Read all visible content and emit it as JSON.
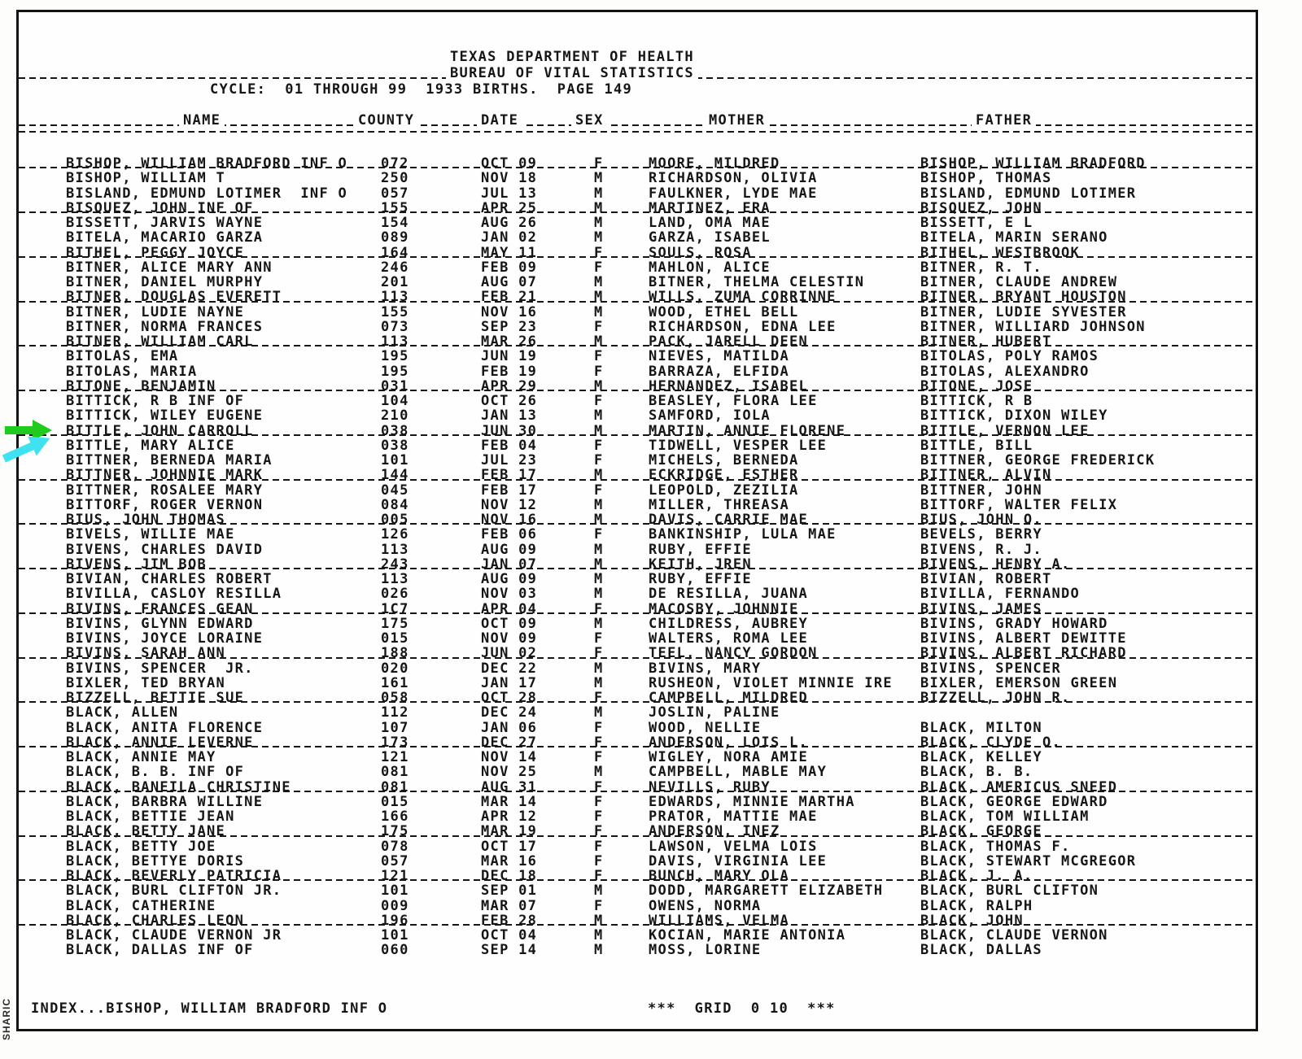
{
  "header": {
    "title_line1": "TEXAS DEPARTMENT OF HEALTH",
    "title_line2": "BUREAU OF VITAL STATISTICS",
    "cycle_line": "CYCLE:  01 THROUGH 99  1933 BIRTHS.  PAGE 149"
  },
  "columns": {
    "name": "NAME",
    "county": "COUNTY",
    "date": "DATE",
    "sex": "SEX",
    "mother": "MOTHER",
    "father": "FATHER"
  },
  "rows": [
    {
      "name": "BISHOP, WILLIAM BRADFORD INF O",
      "county": "072",
      "date": "OCT 09",
      "sex": "F",
      "mother": "MOORE, MILDRED",
      "father": "BISHOP, WILLIAM BRADFORD"
    },
    {
      "name": "BISHOP, WILLIAM T",
      "county": "250",
      "date": "NOV 18",
      "sex": "M",
      "mother": "RICHARDSON, OLIVIA",
      "father": "BISHOP, THOMAS"
    },
    {
      "name": "BISLAND, EDMUND LOTIMER  INF O",
      "county": "057",
      "date": "JUL 13",
      "sex": "M",
      "mother": "FAULKNER, LYDE MAE",
      "father": "BISLAND, EDMUND LOTIMER"
    },
    {
      "name": "BISQUEZ, JOHN INF OF",
      "county": "155",
      "date": "APR 25",
      "sex": "M",
      "mother": "MARTINEZ, ERA",
      "father": "BISQUEZ, JOHN"
    },
    {
      "name": "BISSETT, JARVIS WAYNE",
      "county": "154",
      "date": "AUG 26",
      "sex": "M",
      "mother": "LAND, OMA MAE",
      "father": "BISSETT, E L"
    },
    {
      "name": "BITELA, MACARIO GARZA",
      "county": "089",
      "date": "JAN 02",
      "sex": "M",
      "mother": "GARZA, ISABEL",
      "father": "BITELA, MARIN SERANO"
    },
    {
      "name": "BITHEL, PEGGY JOYCE",
      "county": "164",
      "date": "MAY 11",
      "sex": "F",
      "mother": "SOULS, ROSA",
      "father": "BITHEL, WESTBROOK"
    },
    {
      "name": "BITNER, ALICE MARY ANN",
      "county": "246",
      "date": "FEB 09",
      "sex": "F",
      "mother": "MAHLON, ALICE",
      "father": "BITNER, R. T."
    },
    {
      "name": "BITNER, DANIEL MURPHY",
      "county": "201",
      "date": "AUG 07",
      "sex": "M",
      "mother": "BITNER, THELMA CELESTIN",
      "father": "BITNER, CLAUDE ANDREW"
    },
    {
      "name": "BITNER, DOUGLAS EVERETT",
      "county": "113",
      "date": "FEB 21",
      "sex": "M",
      "mother": "WILLS, ZUMA CORRINNE",
      "father": "BITNER, BRYANT HOUSTON"
    },
    {
      "name": "BITNER, LUDIE NAYNE",
      "county": "155",
      "date": "NOV 16",
      "sex": "M",
      "mother": "WOOD, ETHEL BELL",
      "father": "BITNER, LUDIE SYVESTER"
    },
    {
      "name": "BITNER, NORMA FRANCES",
      "county": "073",
      "date": "SEP 23",
      "sex": "F",
      "mother": "RICHARDSON, EDNA LEE",
      "father": "BITNER, WILLIARD JOHNSON"
    },
    {
      "name": "BITNER, WILLIAM CARL",
      "county": "113",
      "date": "MAR 26",
      "sex": "M",
      "mother": "PACK, JARELL DEEN",
      "father": "BITNER, HUBERT"
    },
    {
      "name": "BITOLAS, EMA",
      "county": "195",
      "date": "JUN 19",
      "sex": "F",
      "mother": "NIEVES, MATILDA",
      "father": "BITOLAS, POLY RAMOS"
    },
    {
      "name": "BITOLAS, MARIA",
      "county": "195",
      "date": "FEB 19",
      "sex": "F",
      "mother": "BARRAZA, ELFIDA",
      "father": "BITOLAS, ALEXANDRO"
    },
    {
      "name": "BITONE, BENJAMIN",
      "county": "031",
      "date": "APR 29",
      "sex": "M",
      "mother": "HERNANDEZ, ISABEL",
      "father": "BITONE, JOSE"
    },
    {
      "name": "BITTICK, R B INF OF",
      "county": "104",
      "date": "OCT 26",
      "sex": "F",
      "mother": "BEASLEY, FLORA LEE",
      "father": "BITTICK, R B"
    },
    {
      "name": "BITTICK, WILEY EUGENE",
      "county": "210",
      "date": "JAN 13",
      "sex": "M",
      "mother": "SAMFORD, IOLA",
      "father": "BITTICK, DIXON WILEY"
    },
    {
      "name": "BITTLE, JOHN CARROLL",
      "county": "038",
      "date": "JUN 30",
      "sex": "M",
      "mother": "MARTIN, ANNIE FLORENE",
      "father": "BITTLE, VERNON LEE"
    },
    {
      "name": "BITTLE, MARY ALICE",
      "county": "038",
      "date": "FEB 04",
      "sex": "F",
      "mother": "TIDWELL, VESPER LEE",
      "father": "BITTLE, BILL"
    },
    {
      "name": "BITTNER, BERNEDA MARIA",
      "county": "101",
      "date": "JUL 23",
      "sex": "F",
      "mother": "MICHELS, BERNEDA",
      "father": "BITTNER, GEORGE FREDERICK"
    },
    {
      "name": "BITTNER, JOHNNIE MARK",
      "county": "144",
      "date": "FEB 17",
      "sex": "M",
      "mother": "ECKRIDGE, ESTHER",
      "father": "BITTNER, ALVIN"
    },
    {
      "name": "BITTNER, ROSALEE MARY",
      "county": "045",
      "date": "FEB 17",
      "sex": "F",
      "mother": "LEOPOLD, ZEZILIA",
      "father": "BITTNER, JOHN"
    },
    {
      "name": "BITTORF, ROGER VERNON",
      "county": "084",
      "date": "NOV 12",
      "sex": "M",
      "mother": "MILLER, THREASA",
      "father": "BITTORF, WALTER FELIX"
    },
    {
      "name": "BIUS, JOHN THOMAS",
      "county": "005",
      "date": "NOV 16",
      "sex": "M",
      "mother": "DAVIS, CARRIE MAE",
      "father": "BIUS, JOHN O."
    },
    {
      "name": "BIVELS, WILLIE MAE",
      "county": "126",
      "date": "FEB 06",
      "sex": "F",
      "mother": "BANKINSHIP, LULA MAE",
      "father": "BEVELS, BERRY"
    },
    {
      "name": "BIVENS, CHARLES DAVID",
      "county": "113",
      "date": "AUG 09",
      "sex": "M",
      "mother": "RUBY, EFFIE",
      "father": "BIVENS, R. J."
    },
    {
      "name": "BIVENS, JIM BOB",
      "county": "243",
      "date": "JAN 07",
      "sex": "M",
      "mother": "KEITH, JREN",
      "father": "BIVENS, HENRY A."
    },
    {
      "name": "BIVIAN, CHARLES ROBERT",
      "county": "113",
      "date": "AUG 09",
      "sex": "M",
      "mother": "RUBY, EFFIE",
      "father": "BIVIAN, ROBERT"
    },
    {
      "name": "BIVILLA, CASLOY RESILLA",
      "county": "026",
      "date": "NOV 03",
      "sex": "M",
      "mother": "DE RESILLA, JUANA",
      "father": "BIVILLA, FERNANDO"
    },
    {
      "name": "BIVINS, FRANCES GEAN",
      "county": "1C7",
      "date": "APR 04",
      "sex": "F",
      "mother": "MACOSBY, JOHNNIE",
      "father": "BIVINS, JAMES"
    },
    {
      "name": "BIVINS, GLYNN EDWARD",
      "county": "175",
      "date": "OCT 09",
      "sex": "M",
      "mother": "CHILDRESS, AUBREY",
      "father": "BIVINS, GRADY HOWARD"
    },
    {
      "name": "BIVINS, JOYCE LORAINE",
      "county": "015",
      "date": "NOV 09",
      "sex": "F",
      "mother": "WALTERS, ROMA LEE",
      "father": "BIVINS, ALBERT DEWITTE"
    },
    {
      "name": "BIVINS, SARAH ANN",
      "county": "188",
      "date": "JUN 02",
      "sex": "F",
      "mother": "TEEL, NANCY GORDON",
      "father": "BIVINS, ALBERT RICHARD"
    },
    {
      "name": "BIVINS, SPENCER  JR.",
      "county": "020",
      "date": "DEC 22",
      "sex": "M",
      "mother": "BIVINS, MARY",
      "father": "BIVINS, SPENCER"
    },
    {
      "name": "BIXLER, TED BRYAN",
      "county": "161",
      "date": "JAN 17",
      "sex": "M",
      "mother": "RUSHEON, VIOLET MINNIE IRE",
      "father": "BIXLER, EMERSON GREEN"
    },
    {
      "name": "BIZZELL, BETTIE SUE",
      "county": "058",
      "date": "OCT 28",
      "sex": "F",
      "mother": "CAMPBELL, MILDRED",
      "father": "BIZZELL, JOHN R."
    },
    {
      "name": "BLACK, ALLEN",
      "county": "112",
      "date": "DEC 24",
      "sex": "M",
      "mother": "JOSLIN, PALINE",
      "father": ""
    },
    {
      "name": "BLACK, ANITA FLORENCE",
      "county": "107",
      "date": "JAN 06",
      "sex": "F",
      "mother": "WOOD, NELLIE",
      "father": "BLACK, MILTON"
    },
    {
      "name": "BLACK, ANNIE LEVERNE",
      "county": "173",
      "date": "DEC 27",
      "sex": "F",
      "mother": "ANDERSON, LOIS L.",
      "father": "BLACK, CLYDE O."
    },
    {
      "name": "BLACK, ANNIE MAY",
      "county": "121",
      "date": "NOV 14",
      "sex": "F",
      "mother": "WIGLEY, NORA AMIE",
      "father": "BLACK, KELLEY"
    },
    {
      "name": "BLACK, B. B. INF OF",
      "county": "081",
      "date": "NOV 25",
      "sex": "M",
      "mother": "CAMPBELL, MABLE MAY",
      "father": "BLACK, B. B."
    },
    {
      "name": "BLACK, BANEILA CHRISTINE",
      "county": "081",
      "date": "AUG 31",
      "sex": "F",
      "mother": "NEVILLS, RUBY",
      "father": "BLACK, AMERICUS SNEED"
    },
    {
      "name": "BLACK, BARBRA WILLINE",
      "county": "015",
      "date": "MAR 14",
      "sex": "F",
      "mother": "EDWARDS, MINNIE MARTHA",
      "father": "BLACK, GEORGE EDWARD"
    },
    {
      "name": "BLACK, BETTIE JEAN",
      "county": "166",
      "date": "APR 12",
      "sex": "F",
      "mother": "PRATOR, MATTIE MAE",
      "father": "BLACK, TOM WILLIAM"
    },
    {
      "name": "BLACK, BETTY JANE",
      "county": "175",
      "date": "MAR 19",
      "sex": "F",
      "mother": "ANDERSON, INEZ",
      "father": "BLACK, GEORGE"
    },
    {
      "name": "BLACK, BETTY JOE",
      "county": "078",
      "date": "OCT 17",
      "sex": "F",
      "mother": "LAWSON, VELMA LOIS",
      "father": "BLACK, THOMAS F."
    },
    {
      "name": "BLACK, BETTYE DORIS",
      "county": "057",
      "date": "MAR 16",
      "sex": "F",
      "mother": "DAVIS, VIRGINIA LEE",
      "father": "BLACK, STEWART MCGREGOR"
    },
    {
      "name": "BLACK, BEVERLY PATRICIA",
      "county": "121",
      "date": "DEC 18",
      "sex": "F",
      "mother": "BUNCH, MARY OLA",
      "father": "BLACK, J. A."
    },
    {
      "name": "BLACK, BURL CLIFTON JR.",
      "county": "101",
      "date": "SEP 01",
      "sex": "M",
      "mother": "DODD, MARGARETT ELIZABETH",
      "father": "BLACK, BURL CLIFTON"
    },
    {
      "name": "BLACK, CATHERINE",
      "county": "009",
      "date": "MAR 07",
      "sex": "F",
      "mother": "OWENS, NORMA",
      "father": "BLACK, RALPH"
    },
    {
      "name": "BLACK, CHARLES LEON",
      "county": "196",
      "date": "FEB 28",
      "sex": "M",
      "mother": "WILLIAMS, VELMA",
      "father": "BLACK, JOHN"
    },
    {
      "name": "BLACK, CLAUDE VERNON JR",
      "county": "101",
      "date": "OCT 04",
      "sex": "M",
      "mother": "KOCIAN, MARIE ANTONIA",
      "father": "BLACK, CLAUDE VERNON"
    },
    {
      "name": "BLACK, DALLAS INF OF",
      "county": "060",
      "date": "SEP 14",
      "sex": "M",
      "mother": "MOSS, LORINE",
      "father": "BLACK, DALLAS"
    }
  ],
  "footer": {
    "index_label": "INDEX...BISHOP, WILLIAM BRADFORD INF O",
    "grid_label": "***  GRID  0 10  ***"
  },
  "side_label": "SHARIC",
  "annotations": {
    "green_arrow": {
      "color": "#1ecb1e",
      "points_to_row": 18
    },
    "cyan_arrow": {
      "color": "#40e2f2",
      "points_to_row": 19
    }
  },
  "ink_color": "#161616"
}
